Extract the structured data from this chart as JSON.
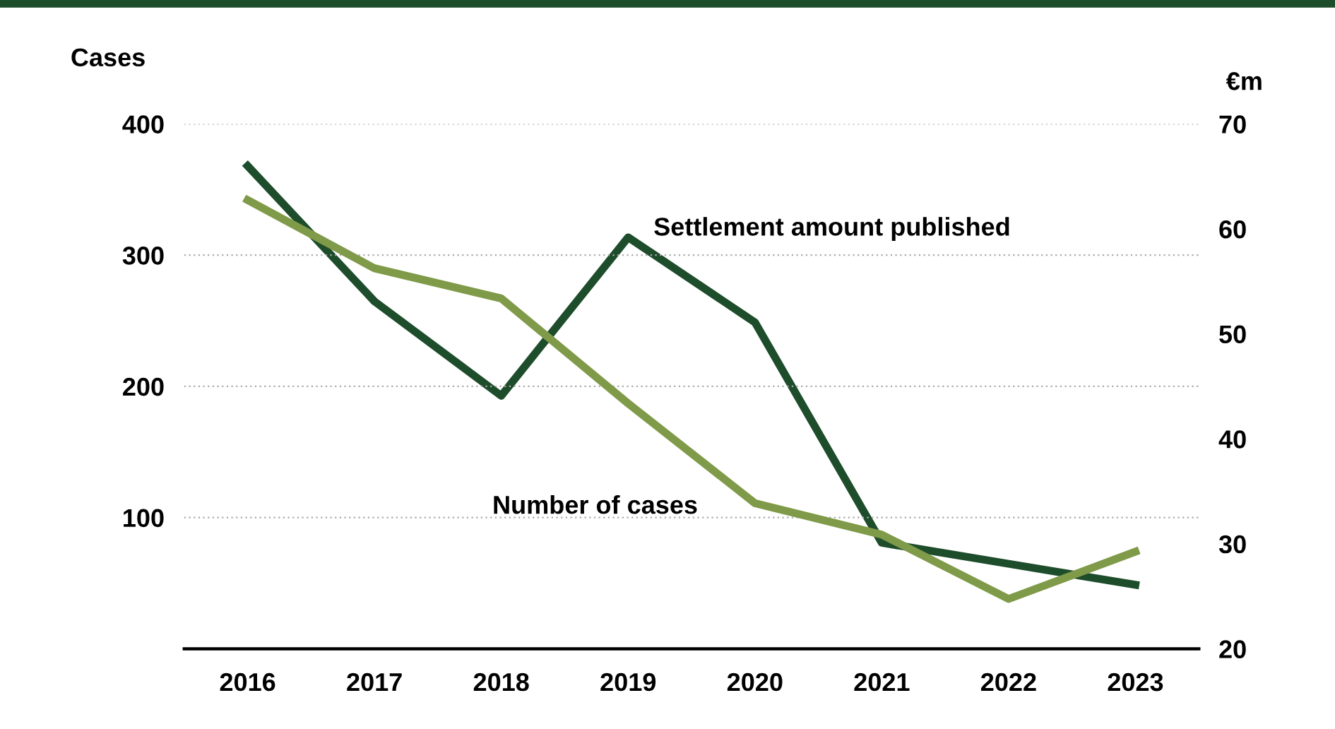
{
  "chart_data": {
    "type": "line",
    "ylabel": "Cases",
    "y2label": "€m",
    "categories": [
      "2016",
      "2017",
      "2018",
      "2019",
      "2020",
      "2021",
      "2022",
      "2023"
    ],
    "series": [
      {
        "name": "Number of cases",
        "color": "#7f9a48",
        "values": [
          342,
          290,
          267,
          187,
          111,
          87,
          38,
          74
        ]
      },
      {
        "name": "Settlement amount published",
        "color": "#1e4d2b",
        "axis": "y2",
        "values": [
          66,
          53.1,
          44.1,
          59.2,
          51.1,
          30.1,
          28.1,
          26.1
        ]
      }
    ],
    "ylim": [
      0,
      400
    ],
    "yticks": [
      {
        "value": 0,
        "label": null
      },
      100,
      200,
      300,
      400
    ],
    "y2lim": [
      20,
      70
    ],
    "y2ticks": [
      20,
      30,
      40,
      50,
      60,
      70
    ],
    "grid": "y",
    "legend": false,
    "marker": "none",
    "line_style": "solid"
  }
}
